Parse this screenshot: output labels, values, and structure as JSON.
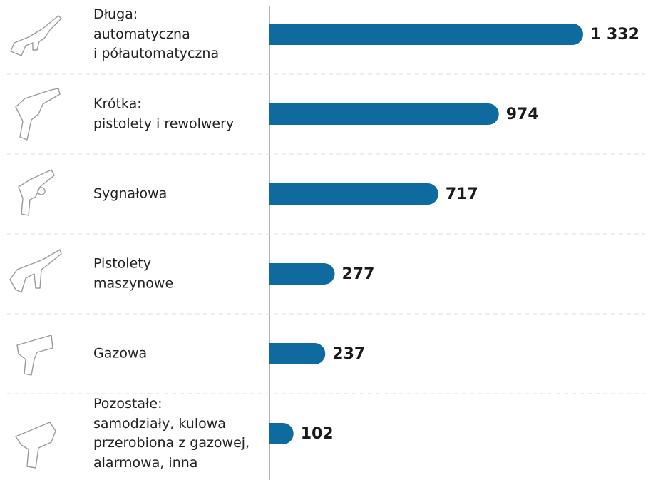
{
  "chart_data": {
    "type": "bar",
    "orientation": "horizontal",
    "categories": [
      "Długa:\nautomatyczna\ni półautomatyczna",
      "Krótka:\npistolety i rewolwery",
      "Sygnałowa",
      "Pistolety\nmaszynowe",
      "Gazowa",
      "Pozostałe:\nsamodziały, kulowa\nprzerobiona z gazowej,\nalarmowa, inna"
    ],
    "values": [
      1332,
      974,
      717,
      277,
      237,
      102
    ],
    "value_labels": [
      "1 332",
      "974",
      "717",
      "277",
      "237",
      "102"
    ],
    "color": "#0e6a9f",
    "xlim": [
      0,
      1332
    ]
  }
}
